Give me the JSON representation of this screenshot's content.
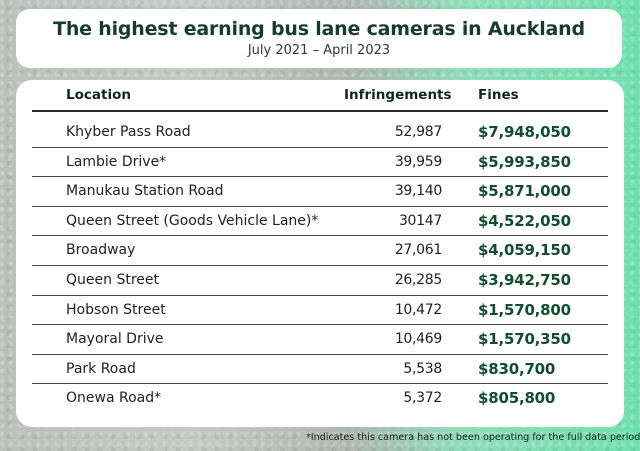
{
  "header": {
    "title": "The highest earning bus lane cameras in Auckland",
    "subtitle": "July 2021 – April 2023"
  },
  "table": {
    "columns": [
      "Location",
      "Infringements",
      "Fines"
    ],
    "rows": [
      {
        "location": "Khyber Pass Road",
        "infringements": "52,987",
        "fines": "$7,948,050"
      },
      {
        "location": "Lambie Drive*",
        "infringements": "39,959",
        "fines": "$5,993,850"
      },
      {
        "location": "Manukau Station Road",
        "infringements": "39,140",
        "fines": "$5,871,000"
      },
      {
        "location": "Queen Street (Goods Vehicle Lane)*",
        "infringements": "30147",
        "fines": "$4,522,050"
      },
      {
        "location": "Broadway",
        "infringements": "27,061",
        "fines": "$4,059,150"
      },
      {
        "location": "Queen Street",
        "infringements": "26,285",
        "fines": "$3,942,750"
      },
      {
        "location": "Hobson Street",
        "infringements": "10,472",
        "fines": "$1,570,800"
      },
      {
        "location": "Mayoral Drive",
        "infringements": "10,469",
        "fines": "$1,570,350"
      },
      {
        "location": "Park Road",
        "infringements": "5,538",
        "fines": "$830,700"
      },
      {
        "location": "Onewa Road*",
        "infringements": "5,372",
        "fines": "$805,800"
      }
    ]
  },
  "footnote": "*Indicates this camera has not been operating for the full data period",
  "colors": {
    "title": "#163d2a",
    "fines": "#124d2f",
    "background_left": "#b9bfbb",
    "background_right": "#6ee0ad"
  }
}
